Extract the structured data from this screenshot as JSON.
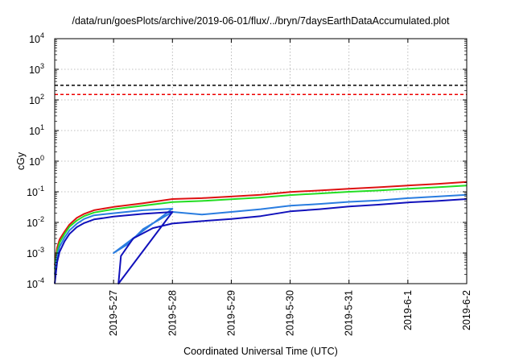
{
  "chart_data": {
    "type": "line",
    "title": "/data/run/goesPlots/archive/2019-06-01/flux/../bryn/7daysEarthDataAccumulated.plot",
    "xlabel": "Coordinated Universal Time (UTC)",
    "ylabel": "cGy",
    "y_scale": "log",
    "ylim": [
      0.0001,
      10000
    ],
    "xlim": [
      "2019-05-26 00:00",
      "2019-06-02 00:00"
    ],
    "grid": true,
    "x_tick_labels": [
      "2019-5-27",
      "2019-5-28",
      "2019-5-29",
      "2019-5-30",
      "2019-5-31",
      "2019-6-1",
      "2019-6-2"
    ],
    "x_ticks": [
      "2019-05-27",
      "2019-05-28",
      "2019-05-29",
      "2019-05-30",
      "2019-05-31",
      "2019-06-01",
      "2019-06-02"
    ],
    "y_ticks": [
      {
        "value": 0.0001,
        "base": "10",
        "exp": "-4"
      },
      {
        "value": 0.001,
        "base": "10",
        "exp": "-3"
      },
      {
        "value": 0.01,
        "base": "10",
        "exp": "-2"
      },
      {
        "value": 0.1,
        "base": "10",
        "exp": "-1"
      },
      {
        "value": 1,
        "base": "10",
        "exp": "0"
      },
      {
        "value": 10,
        "base": "10",
        "exp": "1"
      },
      {
        "value": 100,
        "base": "10",
        "exp": "2"
      },
      {
        "value": 1000,
        "base": "10",
        "exp": "3"
      },
      {
        "value": 10000,
        "base": "10",
        "exp": "4"
      }
    ],
    "thresholds": [
      {
        "y": 300,
        "color": "#000000",
        "style": "dashed"
      },
      {
        "y": 150,
        "color": "#ee0000",
        "style": "dashed"
      }
    ],
    "series": [
      {
        "color": "#dd1111",
        "points": [
          [
            "2019-05-26 00:00",
            0.0004
          ],
          [
            "2019-05-26 01:00",
            0.0015
          ],
          [
            "2019-05-26 02:00",
            0.0028
          ],
          [
            "2019-05-26 04:00",
            0.005
          ],
          [
            "2019-05-26 06:00",
            0.0085
          ],
          [
            "2019-05-26 09:00",
            0.014
          ],
          [
            "2019-05-26 12:00",
            0.019
          ],
          [
            "2019-05-26 16:00",
            0.025
          ],
          [
            "2019-05-27 00:00",
            0.032
          ],
          [
            "2019-05-27 12:00",
            0.042
          ],
          [
            "2019-05-28 00:00",
            0.058
          ],
          [
            "2019-05-28 12:00",
            0.062
          ],
          [
            "2019-05-29 00:00",
            0.07
          ],
          [
            "2019-05-29 12:00",
            0.08
          ],
          [
            "2019-05-30 00:00",
            0.098
          ],
          [
            "2019-05-30 12:00",
            0.11
          ],
          [
            "2019-05-31 00:00",
            0.125
          ],
          [
            "2019-05-31 12:00",
            0.14
          ],
          [
            "2019-06-01 00:00",
            0.16
          ],
          [
            "2019-06-01 12:00",
            0.18
          ],
          [
            "2019-06-02 00:00",
            0.21
          ]
        ]
      },
      {
        "color": "#22dd22",
        "points": [
          [
            "2019-05-26 00:00",
            0.0003
          ],
          [
            "2019-05-26 01:00",
            0.0011
          ],
          [
            "2019-05-26 02:00",
            0.0022
          ],
          [
            "2019-05-26 04:00",
            0.0042
          ],
          [
            "2019-05-26 06:00",
            0.0072
          ],
          [
            "2019-05-26 09:00",
            0.0115
          ],
          [
            "2019-05-26 12:00",
            0.016
          ],
          [
            "2019-05-26 16:00",
            0.021
          ],
          [
            "2019-05-27 00:00",
            0.027
          ],
          [
            "2019-05-27 12:00",
            0.035
          ],
          [
            "2019-05-28 00:00",
            0.046
          ],
          [
            "2019-05-28 12:00",
            0.05
          ],
          [
            "2019-05-29 00:00",
            0.057
          ],
          [
            "2019-05-29 12:00",
            0.065
          ],
          [
            "2019-05-30 00:00",
            0.078
          ],
          [
            "2019-05-30 12:00",
            0.088
          ],
          [
            "2019-05-31 00:00",
            0.1
          ],
          [
            "2019-05-31 12:00",
            0.11
          ],
          [
            "2019-06-01 00:00",
            0.125
          ],
          [
            "2019-06-01 12:00",
            0.14
          ],
          [
            "2019-06-02 00:00",
            0.16
          ]
        ]
      },
      {
        "color": "#2a7de0",
        "points": [
          [
            "2019-05-26 00:00",
            0.0002
          ],
          [
            "2019-05-26 01:00",
            0.0008
          ],
          [
            "2019-05-26 02:00",
            0.0016
          ],
          [
            "2019-05-26 04:00",
            0.0032
          ],
          [
            "2019-05-26 06:00",
            0.0055
          ],
          [
            "2019-05-26 09:00",
            0.009
          ],
          [
            "2019-05-26 12:00",
            0.013
          ],
          [
            "2019-05-26 16:00",
            0.017
          ],
          [
            "2019-05-27 00:00",
            0.02
          ],
          [
            "2019-05-27 12:00",
            0.025
          ],
          [
            "2019-05-28 00:00",
            0.028
          ],
          [
            "2019-05-27 00:00",
            0.001
          ],
          [
            "2019-05-27 06:00",
            0.002
          ],
          [
            "2019-05-27 12:00",
            0.006
          ],
          [
            "2019-05-28 00:00",
            0.022
          ],
          [
            "2019-05-28 12:00",
            0.018
          ],
          [
            "2019-05-29 00:00",
            0.022
          ],
          [
            "2019-05-29 12:00",
            0.027
          ],
          [
            "2019-05-30 00:00",
            0.035
          ],
          [
            "2019-05-30 12:00",
            0.04
          ],
          [
            "2019-05-31 00:00",
            0.047
          ],
          [
            "2019-05-31 12:00",
            0.052
          ],
          [
            "2019-06-01 00:00",
            0.062
          ],
          [
            "2019-06-01 12:00",
            0.07
          ],
          [
            "2019-06-02 00:00",
            0.08
          ]
        ]
      },
      {
        "color": "#1111bb",
        "points": [
          [
            "2019-05-26 00:00",
            0.0001
          ],
          [
            "2019-05-26 01:00",
            0.0005
          ],
          [
            "2019-05-26 02:00",
            0.0011
          ],
          [
            "2019-05-26 04:00",
            0.0024
          ],
          [
            "2019-05-26 06:00",
            0.0042
          ],
          [
            "2019-05-26 09:00",
            0.007
          ],
          [
            "2019-05-26 12:00",
            0.0095
          ],
          [
            "2019-05-26 16:00",
            0.0125
          ],
          [
            "2019-05-27 00:00",
            0.0155
          ],
          [
            "2019-05-27 12:00",
            0.019
          ],
          [
            "2019-05-28 00:00",
            0.022
          ],
          [
            "2019-05-27 02:00",
            0.0001
          ],
          [
            "2019-05-27 03:00",
            0.0008
          ],
          [
            "2019-05-27 08:00",
            0.003
          ],
          [
            "2019-05-27 16:00",
            0.0065
          ],
          [
            "2019-05-28 00:00",
            0.0092
          ],
          [
            "2019-05-28 12:00",
            0.011
          ],
          [
            "2019-05-29 00:00",
            0.013
          ],
          [
            "2019-05-29 12:00",
            0.016
          ],
          [
            "2019-05-30 00:00",
            0.023
          ],
          [
            "2019-05-30 12:00",
            0.027
          ],
          [
            "2019-05-31 00:00",
            0.033
          ],
          [
            "2019-05-31 12:00",
            0.038
          ],
          [
            "2019-06-01 00:00",
            0.045
          ],
          [
            "2019-06-01 12:00",
            0.05
          ],
          [
            "2019-06-02 00:00",
            0.058
          ]
        ]
      }
    ]
  }
}
